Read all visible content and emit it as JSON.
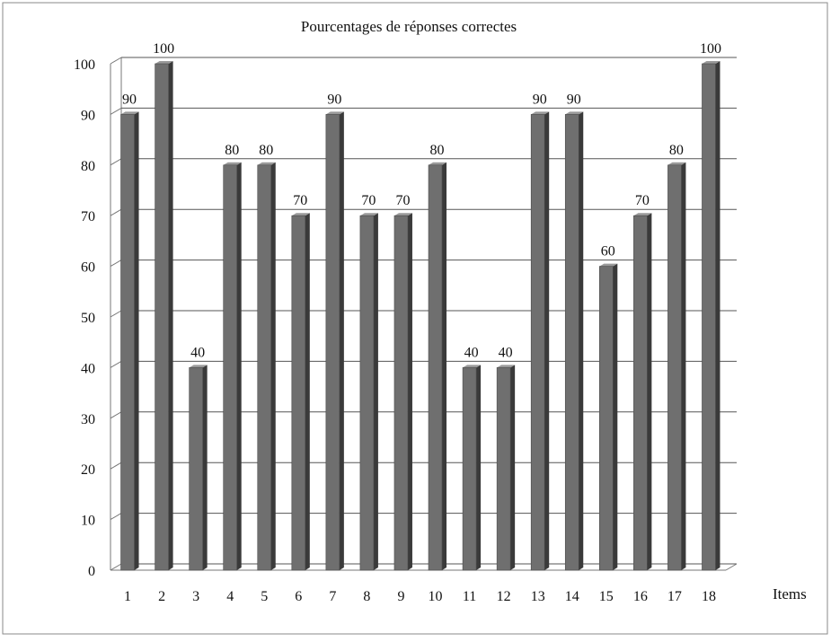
{
  "chart_data": {
    "type": "bar",
    "title": "Pourcentages de réponses correctes",
    "xlabel": "Items",
    "ylabel": "",
    "categories": [
      "1",
      "2",
      "3",
      "4",
      "5",
      "6",
      "7",
      "8",
      "9",
      "10",
      "11",
      "12",
      "13",
      "14",
      "15",
      "16",
      "17",
      "18"
    ],
    "values": [
      90,
      100,
      40,
      80,
      80,
      70,
      90,
      70,
      70,
      80,
      40,
      40,
      90,
      90,
      60,
      70,
      80,
      100
    ],
    "data_labels": [
      "90",
      "100",
      "40",
      "80",
      "80",
      "70",
      "90",
      "70",
      "70",
      "80",
      "40",
      "40",
      "90",
      "90",
      "60",
      "70",
      "80",
      "100"
    ],
    "ylim": [
      0,
      100
    ],
    "yticks": [
      "0",
      "10",
      "20",
      "30",
      "40",
      "50",
      "60",
      "70",
      "80",
      "90",
      "100"
    ],
    "grid": true,
    "legend": "none",
    "colors": {
      "bar_front": "#6f6f6f",
      "bar_side": "#3a3a3a",
      "bar_top": "#9a9a9a",
      "grid": "#555555",
      "axis": "#777777",
      "frame": "#8a8a8a"
    }
  }
}
